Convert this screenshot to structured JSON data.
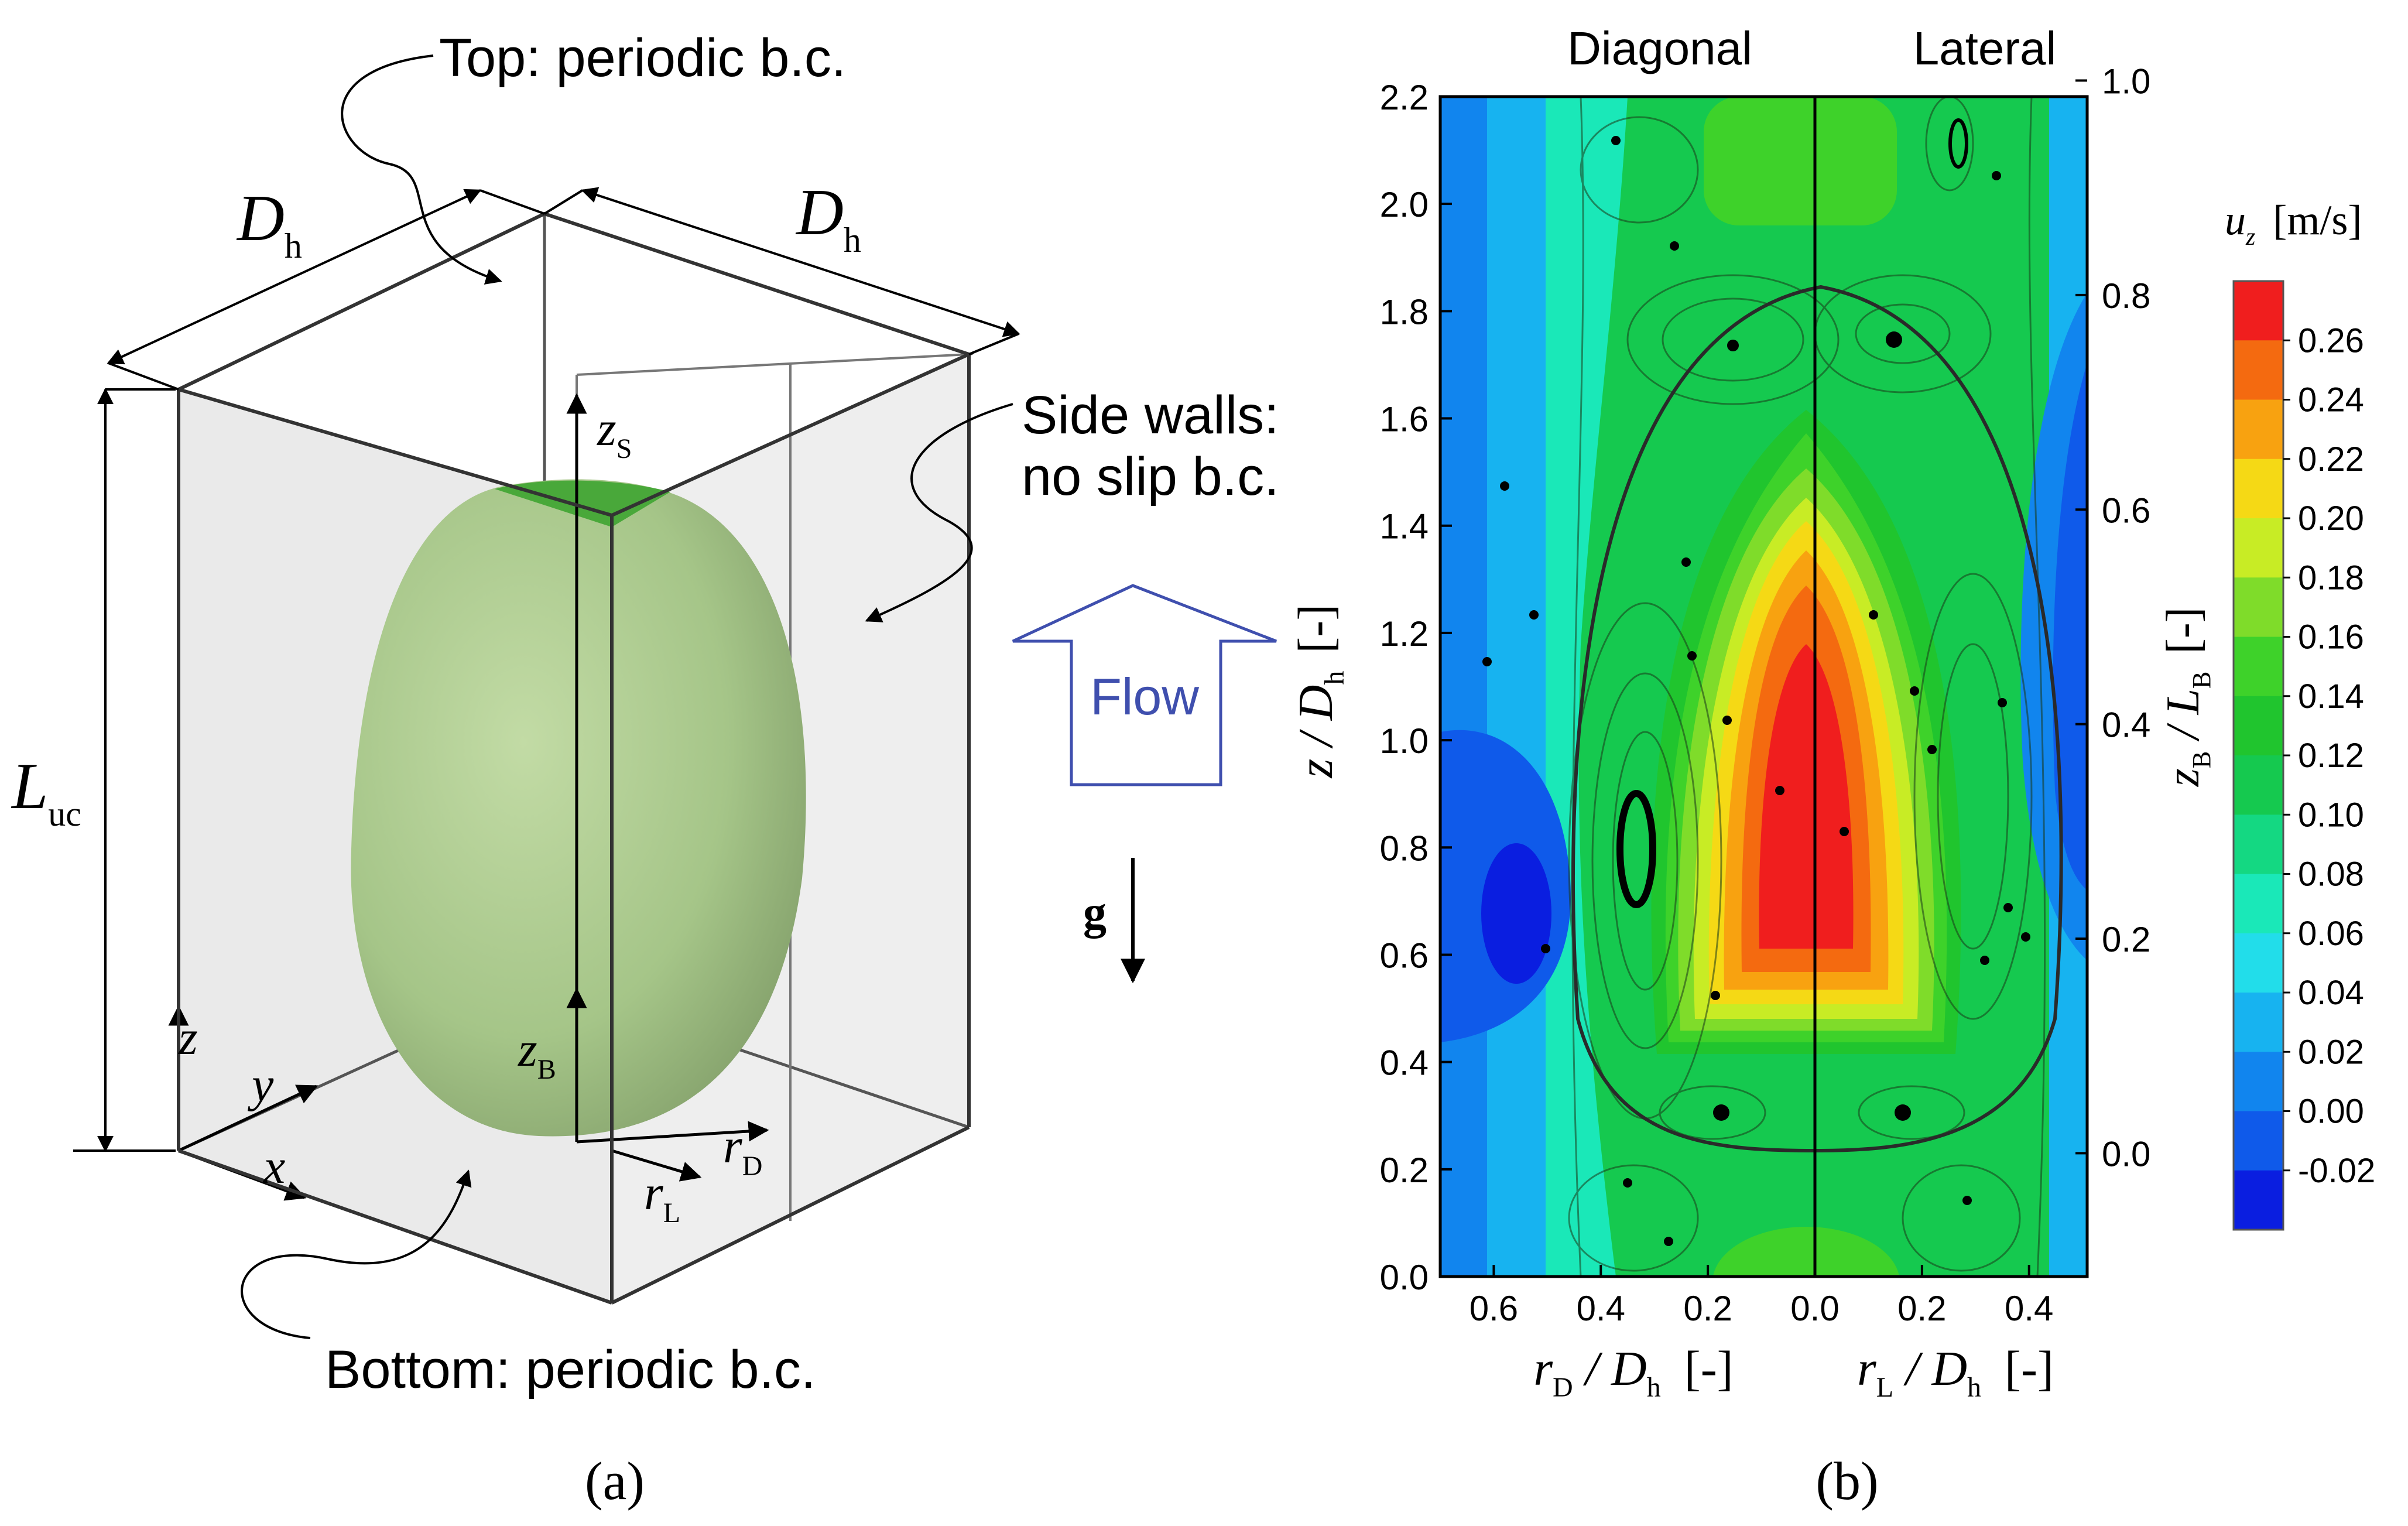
{
  "panel_a": {
    "caption": "(a)",
    "top_label": "Top: periodic b.c.",
    "side_label_1": "Side walls:",
    "side_label_2": "no slip b.c.",
    "bottom_label": "Bottom: periodic b.c.",
    "dh": "D",
    "dh_sub": "h",
    "luc": "L",
    "luc_sub": "uc",
    "z": "z",
    "y": "y",
    "x": "x",
    "zs": "z",
    "zs_sub": "S",
    "zb": "z",
    "zb_sub": "B",
    "rd": "r",
    "rd_sub": "D",
    "rl": "r",
    "rl_sub": "L",
    "flow": "Flow",
    "g": "g",
    "colors": {
      "bubble": "#a9c98a",
      "bubble_top": "#49a83a",
      "wall": "#ececec",
      "flow_arrow": "#3f4fae"
    }
  },
  "panel_b": {
    "caption": "(b)",
    "title_left": "Diagonal",
    "title_right": "Lateral",
    "ylabel_left": "z / D",
    "ylabel_left_sub": "h",
    "ylabel_left_unit": "[-]",
    "ylabel_right": "z",
    "ylabel_right_sub": "B",
    "ylabel_right_mid": " / L",
    "ylabel_right_sub2": "B",
    "ylabel_right_unit": "[-]",
    "xlabel_left": "r",
    "xlabel_left_sub": "D",
    "xlabel_left_rest": " / D",
    "xlabel_left_sub2": "h",
    "xlabel_left_unit": "[-]",
    "xlabel_right": "r",
    "xlabel_right_sub": "L",
    "xlabel_right_rest": " / D",
    "xlabel_right_sub2": "h",
    "xlabel_right_unit": "[-]",
    "colorbar_label": "u",
    "colorbar_label_sub": "z",
    "colorbar_unit": "[m/s]"
  },
  "chart_data": {
    "type": "heatmap",
    "title": "",
    "left_axis": {
      "label": "z / Dh [-]",
      "range": [
        0.0,
        2.2
      ],
      "ticks": [
        "0.0",
        "0.2",
        "0.4",
        "0.6",
        "0.8",
        "1.0",
        "1.2",
        "1.4",
        "1.6",
        "1.8",
        "2.0",
        "2.2"
      ]
    },
    "right_axis": {
      "label": "zB / LB [-]",
      "ticks": [
        "0.0",
        "0.2",
        "0.4",
        "0.6",
        "0.8",
        "1.0"
      ],
      "positions_z_over_Dh": [
        0.23,
        0.63,
        1.03,
        1.43,
        1.83,
        2.23
      ]
    },
    "x_axis_left": {
      "label": "rD / Dh [-]",
      "range": [
        0.7,
        0.0
      ],
      "ticks": [
        "0.6",
        "0.4",
        "0.2",
        "0.0"
      ]
    },
    "x_axis_right": {
      "label": "rL / Dh [-]",
      "range": [
        0.0,
        0.5
      ],
      "ticks": [
        "0.2",
        "0.4"
      ]
    },
    "colorbar": {
      "label": "uz [m/s]",
      "levels": [
        "-0.02",
        "0.00",
        "0.02",
        "0.04",
        "0.06",
        "0.08",
        "0.10",
        "0.12",
        "0.14",
        "0.16",
        "0.18",
        "0.20",
        "0.22",
        "0.24",
        "0.26"
      ],
      "colors": [
        "#0a1ee0",
        "#0f5aea",
        "#1185ee",
        "#17b3f0",
        "#22ddea",
        "#1ae8b8",
        "#14d882",
        "#15c94f",
        "#20c52e",
        "#3ed22a",
        "#7fdc2a",
        "#c8ec25",
        "#f5d915",
        "#f8a210",
        "#f46a10",
        "#f01e1e"
      ]
    }
  }
}
